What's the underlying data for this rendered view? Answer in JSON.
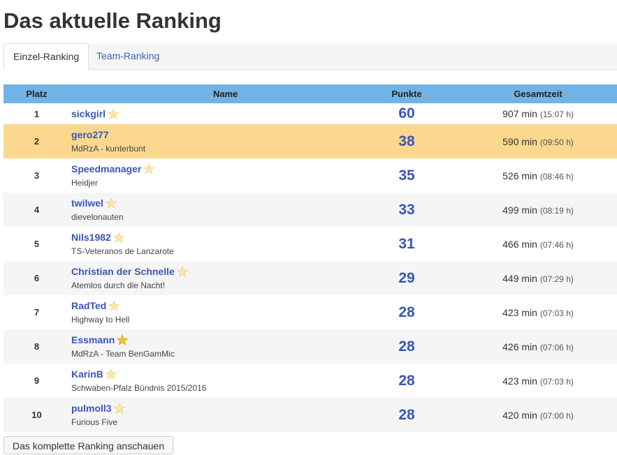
{
  "header": {
    "title": "Das aktuelle Ranking"
  },
  "tabs": [
    {
      "label": "Einzel-Ranking",
      "active": true
    },
    {
      "label": "Team-Ranking",
      "active": false
    }
  ],
  "table": {
    "columns": [
      "Platz",
      "Name",
      "Punkte",
      "Gesamtzeit"
    ],
    "rows": [
      {
        "rank": 1,
        "name": "sickgirl",
        "star": "pale",
        "points": 60,
        "minutes": "907 min",
        "hours": "(15:07 h)"
      },
      {
        "rank": 2,
        "name": "gero277",
        "team": "MdRzA - kunterbunt",
        "highlighted": true,
        "points": 38,
        "minutes": "590 min",
        "hours": "(09:50 h)"
      },
      {
        "rank": 3,
        "name": "Speedmanager",
        "team": "Heidjer",
        "star": "pale",
        "points": 35,
        "minutes": "526 min",
        "hours": "(08:46 h)"
      },
      {
        "rank": 4,
        "name": "twilwel",
        "team": "dievelonauten",
        "star": "pale",
        "points": 33,
        "minutes": "499 min",
        "hours": "(08:19 h)"
      },
      {
        "rank": 5,
        "name": "Nils1982",
        "team": "TS-Veteranos de Lanzarote",
        "star": "pale",
        "points": 31,
        "minutes": "466 min",
        "hours": "(07:46 h)"
      },
      {
        "rank": 6,
        "name": "Christian der Schnelle",
        "team": "Atemlos durch die Nacht!",
        "star": "pale",
        "points": 29,
        "minutes": "449 min",
        "hours": "(07:29 h)"
      },
      {
        "rank": 7,
        "name": "RadTed",
        "team": "Highway to Hell",
        "star": "pale",
        "points": 28,
        "minutes": "423 min",
        "hours": "(07:03 h)"
      },
      {
        "rank": 8,
        "name": "Essmann",
        "team": "MdRzA - Team BenGamMic",
        "star": "gold",
        "points": 28,
        "minutes": "426 min",
        "hours": "(07:06 h)"
      },
      {
        "rank": 9,
        "name": "KarinB",
        "team": "Schwaben-Pfalz Bündnis 2015/2016",
        "star": "pale",
        "points": 28,
        "minutes": "423 min",
        "hours": "(07:03 h)"
      },
      {
        "rank": 10,
        "name": "pulmoll3",
        "team": "Furious Five",
        "star": "pale",
        "points": 28,
        "minutes": "420 min",
        "hours": "(07:00 h)"
      }
    ]
  },
  "button": {
    "label": "Das komplette Ranking anschauen"
  }
}
